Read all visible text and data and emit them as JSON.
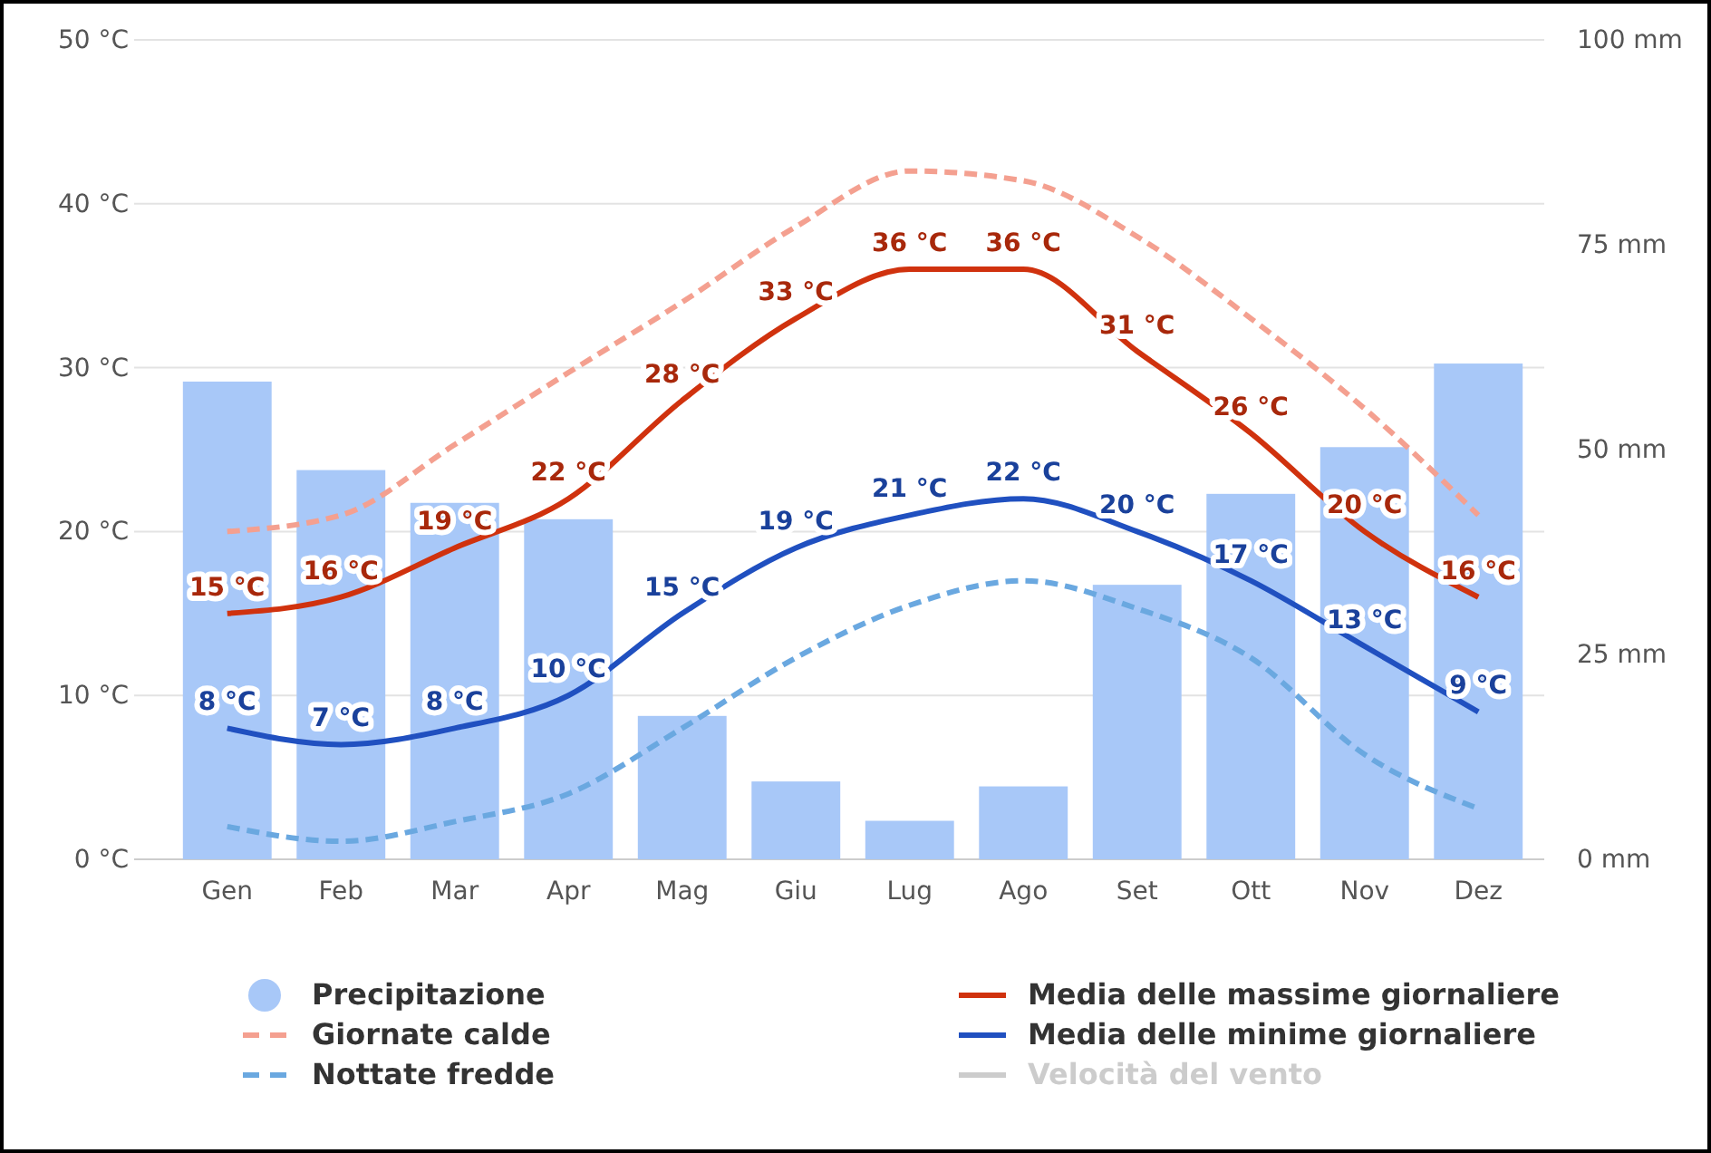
{
  "chart_data": {
    "type": "bar",
    "categories": [
      "Gen",
      "Feb",
      "Mar",
      "Apr",
      "Mag",
      "Giu",
      "Lug",
      "Ago",
      "Set",
      "Ott",
      "Nov",
      "Dez"
    ],
    "series": [
      {
        "name": "Precipitazione",
        "axis": "y2",
        "color": "#a8c8f8",
        "values": [
          58.3,
          47.5,
          43.5,
          41.5,
          17.5,
          9.5,
          4.7,
          8.9,
          33.5,
          44.6,
          50.3,
          60.5
        ]
      },
      {
        "name": "Giornate calde",
        "type": "line",
        "line_style": "dashed",
        "color": "#f4a090",
        "values": [
          20,
          21,
          25.3,
          29.7,
          34,
          38.6,
          42,
          41.4,
          38,
          33,
          27.5,
          21
        ]
      },
      {
        "name": "Nottate fredde",
        "type": "line",
        "line_style": "dashed",
        "color": "#6aa8e0",
        "values": [
          2,
          1.1,
          2.3,
          4,
          8,
          12.3,
          15.5,
          17,
          15.3,
          12.3,
          6.4,
          3.1
        ]
      },
      {
        "name": "Media delle massime giornaliere",
        "type": "line",
        "line_style": "solid",
        "color": "#d0320e",
        "values": [
          15,
          16,
          19,
          22,
          28,
          33,
          36,
          36,
          31,
          26,
          20,
          16
        ],
        "value_labels": [
          "15 °C",
          "16 °C",
          "19 °C",
          "22 °C",
          "28 °C",
          "33 °C",
          "36 °C",
          "36 °C",
          "31 °C",
          "26 °C",
          "20 °C",
          "16 °C"
        ]
      },
      {
        "name": "Media delle minime giornaliere",
        "type": "line",
        "line_style": "solid",
        "color": "#2050c0",
        "values": [
          8,
          7,
          8,
          10,
          15,
          19,
          21,
          22,
          20,
          17,
          13,
          9
        ],
        "value_labels": [
          "8 °C",
          "7 °C",
          "8 °C",
          "10 °C",
          "15 °C",
          "19 °C",
          "21 °C",
          "22 °C",
          "20 °C",
          "17 °C",
          "13 °C",
          "9 °C"
        ]
      },
      {
        "name": "Velocità del vento",
        "type": "line",
        "line_style": "solid",
        "color": "#cccccc",
        "values": [
          null,
          null,
          null,
          null,
          null,
          null,
          null,
          null,
          null,
          null,
          null,
          null
        ]
      }
    ],
    "ylim": [
      0,
      50
    ],
    "yticks": [
      {
        "value": 0,
        "label": "0 °C"
      },
      {
        "value": 10,
        "label": "10 °C"
      },
      {
        "value": 20,
        "label": "20 °C"
      },
      {
        "value": 30,
        "label": "30 °C"
      },
      {
        "value": 40,
        "label": "40 °C"
      },
      {
        "value": 50,
        "label": "50 °C"
      }
    ],
    "y2lim": [
      0,
      100
    ],
    "y2ticks": [
      {
        "value": 0,
        "label": "0 mm"
      },
      {
        "value": 25,
        "label": "25 mm"
      },
      {
        "value": 50,
        "label": "50 mm"
      },
      {
        "value": 75,
        "label": "75 mm"
      },
      {
        "value": 100,
        "label": "100 mm"
      }
    ],
    "grid": "y",
    "legend": "bottom",
    "marker": "none"
  }
}
